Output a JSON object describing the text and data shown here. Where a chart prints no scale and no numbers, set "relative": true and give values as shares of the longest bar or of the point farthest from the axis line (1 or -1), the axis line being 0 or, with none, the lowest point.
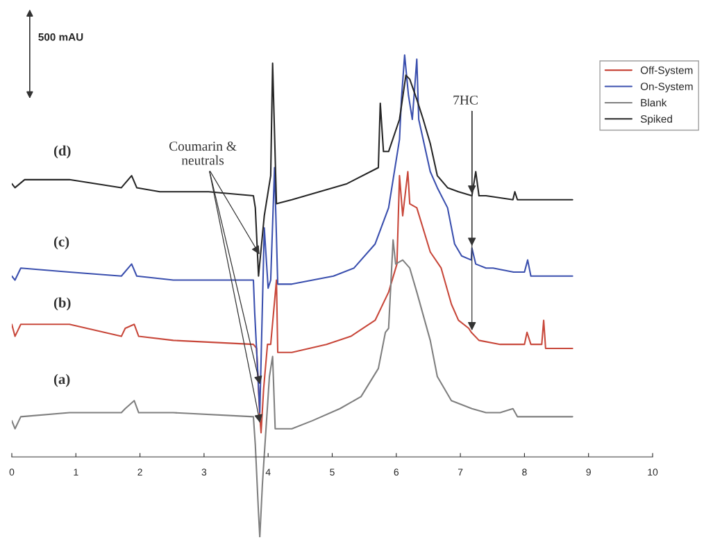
{
  "chart_data": {
    "type": "line",
    "relative": true,
    "xlim": [
      0,
      10
    ],
    "xticks": [
      0,
      1,
      2,
      3,
      4,
      5,
      6,
      7,
      8,
      9,
      10
    ],
    "legend": "top right",
    "grid": false,
    "annotations": [
      "500 mAU",
      "(d)",
      "(c)",
      "(b)",
      "(a)",
      {
        "text": "Coumarin &\nneutrals",
        "x": 3.88,
        "y": 0.08
      },
      {
        "text": "7HC",
        "x": 7.18,
        "y": 0.31
      }
    ],
    "series": [
      {
        "name": "Off-System",
        "color": "#c8473a",
        "x": [
          0,
          0.05,
          0.14,
          0.9,
          1.71,
          1.77,
          1.91,
          1.98,
          2.52,
          3.77,
          3.82,
          3.87,
          3.89,
          3.93,
          3.99,
          4.04,
          4.13,
          4.15,
          4.37,
          4.91,
          5.29,
          5.67,
          5.88,
          6.01,
          6.05,
          6.1,
          6.18,
          6.21,
          6.32,
          6.53,
          6.7,
          6.86,
          6.97,
          7.13,
          7.17,
          7.29,
          7.62,
          8.0,
          8.04,
          8.1,
          8.27,
          8.3,
          8.33,
          8.75
        ],
        "values": [
          0.33,
          0.3,
          0.33,
          0.33,
          0.3,
          0.32,
          0.33,
          0.3,
          0.29,
          0.28,
          0.27,
          0.1,
          0.06,
          0.17,
          0.28,
          0.28,
          0.44,
          0.26,
          0.26,
          0.28,
          0.3,
          0.34,
          0.41,
          0.48,
          0.7,
          0.6,
          0.71,
          0.63,
          0.62,
          0.51,
          0.47,
          0.38,
          0.34,
          0.32,
          0.31,
          0.29,
          0.28,
          0.28,
          0.31,
          0.28,
          0.28,
          0.34,
          0.27,
          0.27
        ]
      },
      {
        "name": "On-System",
        "color": "#3a4fae",
        "x": [
          0,
          0.05,
          0.14,
          0.9,
          1.71,
          1.87,
          1.95,
          2.52,
          3.77,
          3.79,
          3.87,
          3.94,
          4.0,
          4.04,
          4.1,
          4.15,
          4.37,
          5.02,
          5.34,
          5.67,
          5.88,
          6.05,
          6.08,
          6.13,
          6.19,
          6.25,
          6.32,
          6.35,
          6.53,
          6.64,
          6.8,
          6.91,
          7.02,
          7.17,
          7.18,
          7.24,
          7.4,
          7.51,
          7.83,
          8.0,
          8.05,
          8.1,
          8.75
        ],
        "values": [
          0.45,
          0.44,
          0.47,
          0.46,
          0.45,
          0.48,
          0.45,
          0.44,
          0.44,
          0.36,
          0.11,
          0.57,
          0.42,
          0.44,
          0.72,
          0.43,
          0.43,
          0.45,
          0.47,
          0.53,
          0.62,
          0.79,
          0.89,
          1.0,
          0.9,
          0.84,
          0.99,
          0.84,
          0.71,
          0.67,
          0.62,
          0.53,
          0.5,
          0.49,
          0.52,
          0.48,
          0.47,
          0.47,
          0.46,
          0.46,
          0.49,
          0.45,
          0.45
        ]
      },
      {
        "name": "Blank",
        "color": "#7f7f7f",
        "x": [
          0,
          0.05,
          0.14,
          0.9,
          1.71,
          1.77,
          1.91,
          1.98,
          2.52,
          3.77,
          3.8,
          3.85,
          3.87,
          3.91,
          3.93,
          4.02,
          4.07,
          4.11,
          4.37,
          4.69,
          5.12,
          5.45,
          5.72,
          5.83,
          5.88,
          5.95,
          5.99,
          6.1,
          6.21,
          6.32,
          6.53,
          6.64,
          6.86,
          7.18,
          7.4,
          7.62,
          7.82,
          7.89,
          8.75
        ],
        "values": [
          0.09,
          0.07,
          0.1,
          0.11,
          0.11,
          0.12,
          0.14,
          0.11,
          0.11,
          0.1,
          0.03,
          -0.14,
          -0.2,
          -0.07,
          -0.02,
          0.2,
          0.25,
          0.07,
          0.07,
          0.09,
          0.12,
          0.15,
          0.22,
          0.31,
          0.32,
          0.54,
          0.48,
          0.49,
          0.47,
          0.41,
          0.29,
          0.2,
          0.14,
          0.12,
          0.11,
          0.11,
          0.12,
          0.1,
          0.1
        ]
      },
      {
        "name": "Spiked",
        "color": "#262626",
        "x": [
          0,
          0.05,
          0.2,
          0.57,
          0.9,
          1.71,
          1.87,
          1.95,
          2.31,
          3.07,
          3.77,
          3.8,
          3.85,
          3.94,
          4.04,
          4.07,
          4.13,
          4.37,
          5.23,
          5.72,
          5.75,
          5.8,
          5.88,
          6.05,
          6.15,
          6.21,
          6.32,
          6.42,
          6.53,
          6.64,
          6.8,
          6.97,
          7.18,
          7.24,
          7.29,
          7.4,
          7.82,
          7.85,
          7.89,
          8.27,
          8.75
        ],
        "values": [
          0.68,
          0.67,
          0.69,
          0.69,
          0.69,
          0.67,
          0.7,
          0.67,
          0.66,
          0.66,
          0.65,
          0.62,
          0.45,
          0.6,
          0.7,
          0.98,
          0.63,
          0.64,
          0.68,
          0.72,
          0.88,
          0.76,
          0.76,
          0.84,
          0.95,
          0.94,
          0.89,
          0.84,
          0.78,
          0.7,
          0.67,
          0.66,
          0.65,
          0.71,
          0.65,
          0.65,
          0.64,
          0.66,
          0.64,
          0.64,
          0.64
        ]
      }
    ]
  }
}
